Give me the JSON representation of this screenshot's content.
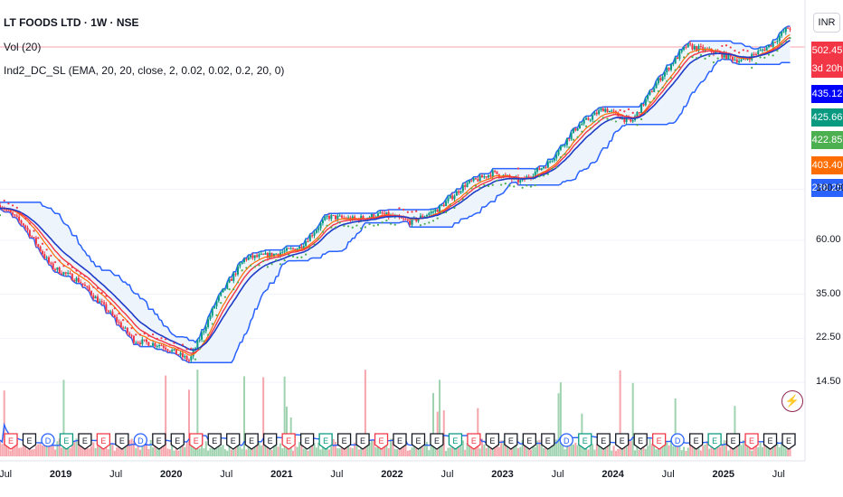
{
  "legend": {
    "title": "LT FOODS LTD · 1W · NSE",
    "vol": "Vol (20)",
    "indicator": "Ind2_DC_SL (EMA, 20, 20, close, 2, 0.02, 0.02, 0.2, 20, 0)"
  },
  "currency": "INR",
  "price_tags": [
    {
      "text": "502.45",
      "color": "#f23645"
    },
    {
      "text": "3d 20h",
      "color": "#f23645"
    },
    {
      "text": "435.12",
      "color": "#0000ff"
    },
    {
      "text": "425.66",
      "color": "#089981"
    },
    {
      "text": "422.85",
      "color": "#4caf50"
    },
    {
      "text": "403.40",
      "color": "#ff6d00"
    },
    {
      "text": "288.25",
      "color": "#2962ff"
    }
  ],
  "y_ticks": [
    "100.00",
    "60.00",
    "35.00",
    "22.50",
    "14.50"
  ],
  "x_ticks": [
    {
      "label": "Jul",
      "year": false
    },
    {
      "label": "2019",
      "year": true
    },
    {
      "label": "Jul",
      "year": false
    },
    {
      "label": "2020",
      "year": true
    },
    {
      "label": "Jul",
      "year": false
    },
    {
      "label": "2021",
      "year": true
    },
    {
      "label": "Jul",
      "year": false
    },
    {
      "label": "2022",
      "year": true
    },
    {
      "label": "Jul",
      "year": false
    },
    {
      "label": "2023",
      "year": true
    },
    {
      "label": "Jul",
      "year": false
    },
    {
      "label": "2024",
      "year": true
    },
    {
      "label": "Jul",
      "year": false
    },
    {
      "label": "2025",
      "year": true
    },
    {
      "label": "Jul",
      "year": false
    }
  ],
  "flash_icon": "flash-icon",
  "event_markers": [
    "E",
    "E",
    "D",
    "E",
    "E",
    "E",
    "E",
    "D",
    "E",
    "E",
    "E",
    "E",
    "E",
    "E",
    "E",
    "E",
    "E",
    "E",
    "E",
    "E",
    "E",
    "E",
    "E",
    "E",
    "E",
    "E",
    "E",
    "E",
    "E",
    "E",
    "D",
    "E",
    "E",
    "E",
    "E",
    "E",
    "D",
    "E",
    "E",
    "E",
    "E",
    "E",
    "E"
  ],
  "colors": {
    "up": "#089981",
    "down": "#f23645",
    "channel": "#2962ff",
    "fill": "#eef4fc",
    "ema": "#1e3cc8",
    "red_line": "#f23645",
    "orange_line": "#ff6d00",
    "sar": "#4caf50",
    "vol_up": "#9fd3b0",
    "vol_down": "#f5a5ab",
    "vol_ma": "#2962ff"
  },
  "chart_data": {
    "type": "line",
    "y_scale": "log",
    "period": "weekly",
    "ylim": [
      12,
      560
    ],
    "x_range": [
      "2018-06",
      "2025-08"
    ],
    "series": [
      {
        "name": "close",
        "x": [
          "2018-06",
          "2018-09",
          "2018-12",
          "2019-03",
          "2019-06",
          "2019-09",
          "2019-12",
          "2020-03",
          "2020-06",
          "2020-09",
          "2020-12",
          "2021-03",
          "2021-06",
          "2021-09",
          "2021-12",
          "2022-03",
          "2022-06",
          "2022-09",
          "2022-12",
          "2023-03",
          "2023-06",
          "2023-09",
          "2023-12",
          "2024-03",
          "2024-06",
          "2024-09",
          "2024-12",
          "2025-03",
          "2025-06",
          "2025-08"
        ],
        "values": [
          88,
          70,
          46,
          40,
          30,
          22,
          21,
          18,
          33,
          50,
          52,
          56,
          76,
          74,
          78,
          72,
          82,
          105,
          118,
          108,
          130,
          185,
          225,
          195,
          300,
          420,
          395,
          360,
          420,
          502
        ]
      }
    ]
  }
}
